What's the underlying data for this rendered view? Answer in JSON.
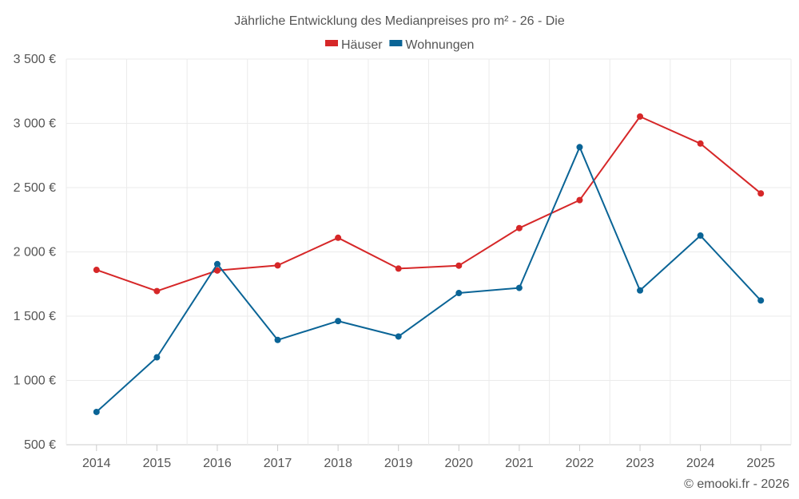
{
  "chart_data": {
    "type": "line",
    "title": "Jährliche Entwicklung des Medianpreises pro m² - 26 - Die",
    "categories": [
      "2014",
      "2015",
      "2016",
      "2017",
      "2018",
      "2019",
      "2020",
      "2021",
      "2022",
      "2023",
      "2024",
      "2025"
    ],
    "series": [
      {
        "name": "Häuser",
        "color": "#d62728",
        "values": [
          1860,
          1695,
          1855,
          1895,
          2110,
          1870,
          1893,
          2185,
          2403,
          3053,
          2843,
          2455
        ]
      },
      {
        "name": "Wohnungen",
        "color": "#0a6496",
        "values": [
          755,
          1180,
          1905,
          1315,
          1462,
          1342,
          1680,
          1720,
          2815,
          1700,
          2127,
          1622
        ]
      }
    ],
    "ylim": [
      500,
      3500
    ],
    "yticks": [
      500,
      1000,
      1500,
      2000,
      2500,
      3000,
      3500
    ],
    "ytick_labels": [
      "500 €",
      "1 000 €",
      "1 500 €",
      "2 000 €",
      "2 500 €",
      "3 000 €",
      "3 500 €"
    ],
    "xlabel": "",
    "ylabel": "",
    "grid": true,
    "legend_position": "top-center"
  },
  "credit": "© emooki.fr - 2026"
}
